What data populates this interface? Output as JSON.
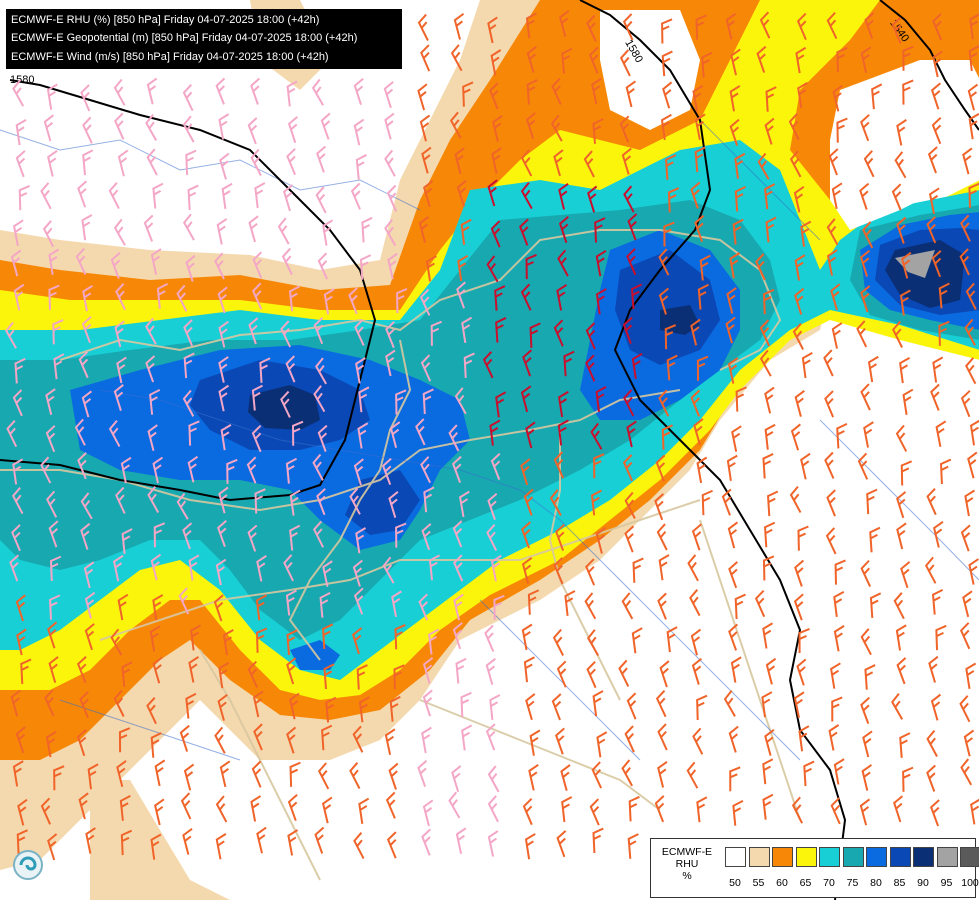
{
  "header": {
    "lines": [
      "ECMWF-E RHU (%) [850 hPa] Friday 04-07-2025 18:00 (+42h)",
      "ECMWF-E Geopotential (m) [850 hPa] Friday 04-07-2025 18:00 (+42h)",
      "ECMWF-E Wind (m/s) [850 hPa] Friday 04-07-2025 18:00 (+42h)"
    ]
  },
  "contour_labels": [
    "1580",
    "1580",
    "1540"
  ],
  "legend": {
    "title_line1": "ECMWF-E",
    "title_line2": "RHU",
    "title_line3": "%",
    "classes": [
      {
        "label": "50",
        "color": "#ffffff"
      },
      {
        "label": "55",
        "color": "#f5d9ae"
      },
      {
        "label": "60",
        "color": "#f78807"
      },
      {
        "label": "65",
        "color": "#fbf50b"
      },
      {
        "label": "70",
        "color": "#18cfd6"
      },
      {
        "label": "75",
        "color": "#17a8b0"
      },
      {
        "label": "80",
        "color": "#0a6ae0"
      },
      {
        "label": "85",
        "color": "#0a48b5"
      },
      {
        "label": "90",
        "color": "#0a2f75"
      },
      {
        "label": "95",
        "color": "#a3a3a3"
      },
      {
        "label": "100",
        "color": "#5a5a5a"
      }
    ]
  },
  "colors": {
    "rhu_55": "#f5d9ae",
    "rhu_60": "#f78807",
    "rhu_65": "#fbf50b",
    "rhu_70": "#18cfd6",
    "rhu_75": "#17a8b0",
    "rhu_80": "#0a6ae0",
    "rhu_85": "#0a48b5",
    "rhu_90": "#0a2f75",
    "rhu_95": "#a3a3a3",
    "geopotential_line": "#000000",
    "border": "#d8c8a0",
    "river": "#3b6fd0",
    "wind_weak": "#f4a6c6",
    "wind_moderate": "#f0642a",
    "wind_strong": "#c8102e"
  },
  "logo_icon": "ecmwf-swirl-icon"
}
